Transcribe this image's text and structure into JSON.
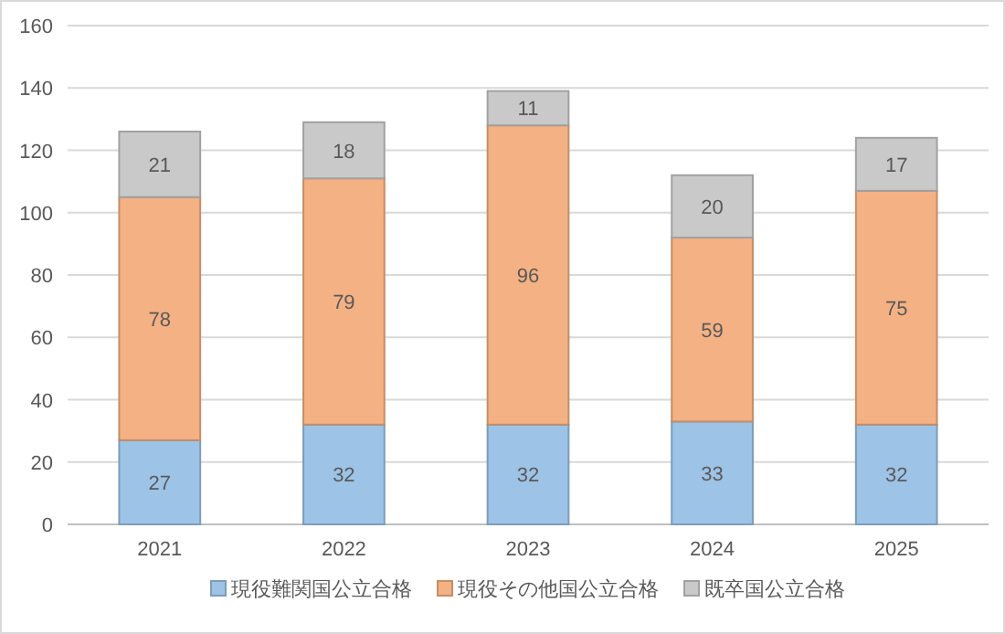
{
  "chart_data": {
    "type": "bar",
    "stacked": true,
    "categories": [
      "2021",
      "2022",
      "2023",
      "2024",
      "2025"
    ],
    "series": [
      {
        "name": "現役難関国公立合格",
        "color": "#9dc3e6",
        "values": [
          27,
          32,
          32,
          33,
          32
        ]
      },
      {
        "name": "現役その他国公立合格",
        "color": "#f4b183",
        "values": [
          78,
          79,
          96,
          59,
          75
        ]
      },
      {
        "name": "既卒国公立合格",
        "color": "#c9c9c9",
        "values": [
          21,
          18,
          11,
          20,
          17
        ]
      }
    ],
    "ylim": [
      0,
      160
    ],
    "yticks": [
      0,
      20,
      40,
      60,
      80,
      100,
      120,
      140,
      160
    ],
    "grid": "y",
    "legend": "bottom",
    "data_labels": true
  }
}
